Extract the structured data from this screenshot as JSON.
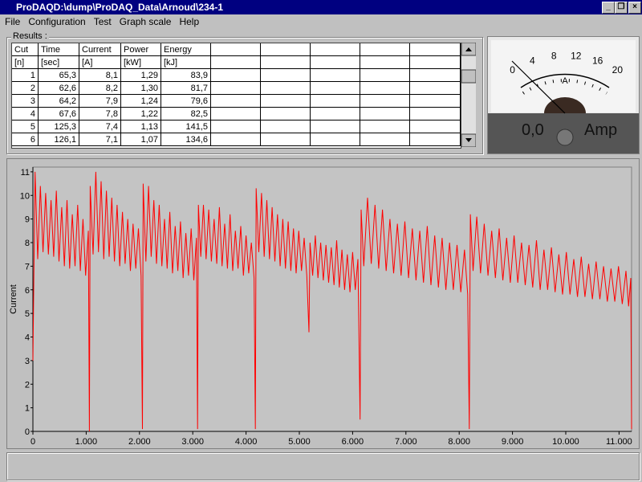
{
  "window": {
    "title": "ProDAQD:\\dump\\ProDAQ_Data\\Arnoud\\234-1"
  },
  "menu": [
    "File",
    "Configuration",
    "Test",
    "Graph scale",
    "Help"
  ],
  "results": {
    "label": "Results :",
    "columns": [
      "Cut",
      "Time",
      "Current",
      "Power",
      "Energy"
    ],
    "units": [
      "[n]",
      "[sec]",
      "[A]",
      "[kW]",
      "[kJ]"
    ],
    "rows": [
      [
        "1",
        "65,3",
        "8,1",
        "1,29",
        "83,9"
      ],
      [
        "2",
        "62,6",
        "8,2",
        "1,30",
        "81,7"
      ],
      [
        "3",
        "64,2",
        "7,9",
        "1,24",
        "79,6"
      ],
      [
        "4",
        "67,6",
        "7,8",
        "1,22",
        "82,5"
      ],
      [
        "5",
        "125,3",
        "7,4",
        "1,13",
        "141,5"
      ],
      [
        "6",
        "126,1",
        "7,1",
        "1,07",
        "134,6"
      ]
    ]
  },
  "meter": {
    "scale": [
      0,
      4,
      8,
      12,
      16,
      20
    ],
    "scale_unit": "A",
    "reading": "0,0",
    "unit": "Amp"
  },
  "chart_data": {
    "type": "line",
    "y_label": "Current",
    "color": "#ff0000",
    "x": [
      0,
      15,
      40,
      90,
      140,
      190,
      240,
      290,
      340,
      390,
      440,
      490,
      540,
      590,
      640,
      690,
      740,
      790,
      840,
      890,
      940,
      990,
      1040,
      1060,
      1075,
      1130,
      1180,
      1230,
      1280,
      1330,
      1380,
      1430,
      1480,
      1530,
      1580,
      1630,
      1680,
      1730,
      1780,
      1830,
      1880,
      1930,
      1980,
      2030,
      2055,
      2070,
      2120,
      2170,
      2220,
      2270,
      2320,
      2370,
      2420,
      2470,
      2520,
      2570,
      2620,
      2670,
      2720,
      2770,
      2820,
      2870,
      2920,
      2970,
      3020,
      3070,
      3090,
      3105,
      3150,
      3200,
      3250,
      3300,
      3350,
      3400,
      3450,
      3500,
      3550,
      3600,
      3650,
      3700,
      3750,
      3800,
      3850,
      3900,
      3950,
      4000,
      4050,
      4100,
      4150,
      4175,
      4190,
      4240,
      4290,
      4340,
      4390,
      4440,
      4490,
      4540,
      4590,
      4640,
      4690,
      4740,
      4790,
      4840,
      4890,
      4940,
      4990,
      5040,
      5090,
      5140,
      5180,
      5200,
      5250,
      5300,
      5350,
      5400,
      5450,
      5500,
      5550,
      5600,
      5650,
      5700,
      5750,
      5800,
      5850,
      5900,
      5950,
      6000,
      6050,
      6100,
      6140,
      6160,
      6210,
      6280,
      6350,
      6420,
      6490,
      6560,
      6630,
      6700,
      6770,
      6840,
      6910,
      6980,
      7050,
      7120,
      7190,
      7260,
      7330,
      7400,
      7470,
      7540,
      7610,
      7680,
      7750,
      7820,
      7890,
      7960,
      8030,
      8100,
      8160,
      8190,
      8210,
      8260,
      8330,
      8400,
      8470,
      8540,
      8610,
      8680,
      8750,
      8820,
      8890,
      8960,
      9030,
      9100,
      9170,
      9240,
      9310,
      9380,
      9450,
      9520,
      9590,
      9660,
      9730,
      9800,
      9870,
      9940,
      10010,
      10080,
      10150,
      10220,
      10290,
      10360,
      10430,
      10500,
      10570,
      10640,
      10710,
      10780,
      10850,
      10920,
      10990,
      11060,
      11130,
      11180,
      11220,
      11235
    ],
    "values": [
      3,
      6,
      11,
      7.3,
      10.4,
      7.6,
      10.1,
      7.5,
      9.8,
      7.4,
      10.2,
      7.2,
      9.5,
      7.0,
      9.8,
      6.9,
      9.2,
      7.0,
      9.6,
      6.8,
      9.0,
      6.6,
      8.5,
      0,
      10.4,
      7.5,
      11,
      7.6,
      10.6,
      7.3,
      10.2,
      7.4,
      9.9,
      7.2,
      9.6,
      7.0,
      9.3,
      7.1,
      9.0,
      6.8,
      8.8,
      6.9,
      8.6,
      6.6,
      0.1,
      10.5,
      7.2,
      10.4,
      7.4,
      9.8,
      7.1,
      9.6,
      7.0,
      9.0,
      6.9,
      9.3,
      6.7,
      8.7,
      6.8,
      8.9,
      6.5,
      8.4,
      6.6,
      8.6,
      6.4,
      8.2,
      0.1,
      9.6,
      7.4,
      9.6,
      7.3,
      9.4,
      7.2,
      9.0,
      7.1,
      9.5,
      7.0,
      8.8,
      6.9,
      9.2,
      6.8,
      8.5,
      6.9,
      8.7,
      6.6,
      8.3,
      6.7,
      8.0,
      6.5,
      0.1,
      10.3,
      7.6,
      10.1,
      7.4,
      9.8,
      7.3,
      9.5,
      7.2,
      9.2,
      7.0,
      9.0,
      6.9,
      8.9,
      6.8,
      8.6,
      6.7,
      8.5,
      6.8,
      8.2,
      6.6,
      4.2,
      8.0,
      6.6,
      8.3,
      6.5,
      8.0,
      6.4,
      7.9,
      6.3,
      7.8,
      6.2,
      8.1,
      6.1,
      7.7,
      6.0,
      7.5,
      5.9,
      7.6,
      6.0,
      7.3,
      0.5,
      9.4,
      7.0,
      9.9,
      7.1,
      9.6,
      6.9,
      9.4,
      6.8,
      9.0,
      6.7,
      8.8,
      6.6,
      8.9,
      6.5,
      8.6,
      6.4,
      8.5,
      6.3,
      8.7,
      6.2,
      8.3,
      6.1,
      8.2,
      6.0,
      8.0,
      6.0,
      7.9,
      5.9,
      7.7,
      5.8,
      0.1,
      9.2,
      6.8,
      9.1,
      6.7,
      8.8,
      6.6,
      8.5,
      6.5,
      8.6,
      6.4,
      8.2,
      6.3,
      8.3,
      6.3,
      8.0,
      6.2,
      7.9,
      6.1,
      8.1,
      6.0,
      7.7,
      6.0,
      7.8,
      5.9,
      7.5,
      5.8,
      7.6,
      5.8,
      7.3,
      5.7,
      7.4,
      5.7,
      7.1,
      5.6,
      7.2,
      5.6,
      7.0,
      5.5,
      6.9,
      5.5,
      7.0,
      5.4,
      6.8,
      5.3,
      6.5,
      0.1
    ],
    "xlim": [
      0,
      11235
    ],
    "ylim": [
      0,
      11.2
    ],
    "xticks": [
      0,
      {
        "value": 1000,
        "label": "1.000"
      },
      {
        "value": 2000,
        "label": "2.000"
      },
      {
        "value": 3000,
        "label": "3.000"
      },
      {
        "value": 4000,
        "label": "4.000"
      },
      {
        "value": 5000,
        "label": "5.000"
      },
      {
        "value": 6000,
        "label": "6.000"
      },
      {
        "value": 7000,
        "label": "7.000"
      },
      {
        "value": 8000,
        "label": "8.000"
      },
      {
        "value": 9000,
        "label": "9.000"
      },
      {
        "value": 10000,
        "label": "10.000"
      },
      {
        "value": 11000,
        "label": "11.000"
      }
    ],
    "yticks": [
      0,
      1,
      2,
      3,
      4,
      5,
      6,
      7,
      8,
      9,
      10,
      11
    ]
  }
}
